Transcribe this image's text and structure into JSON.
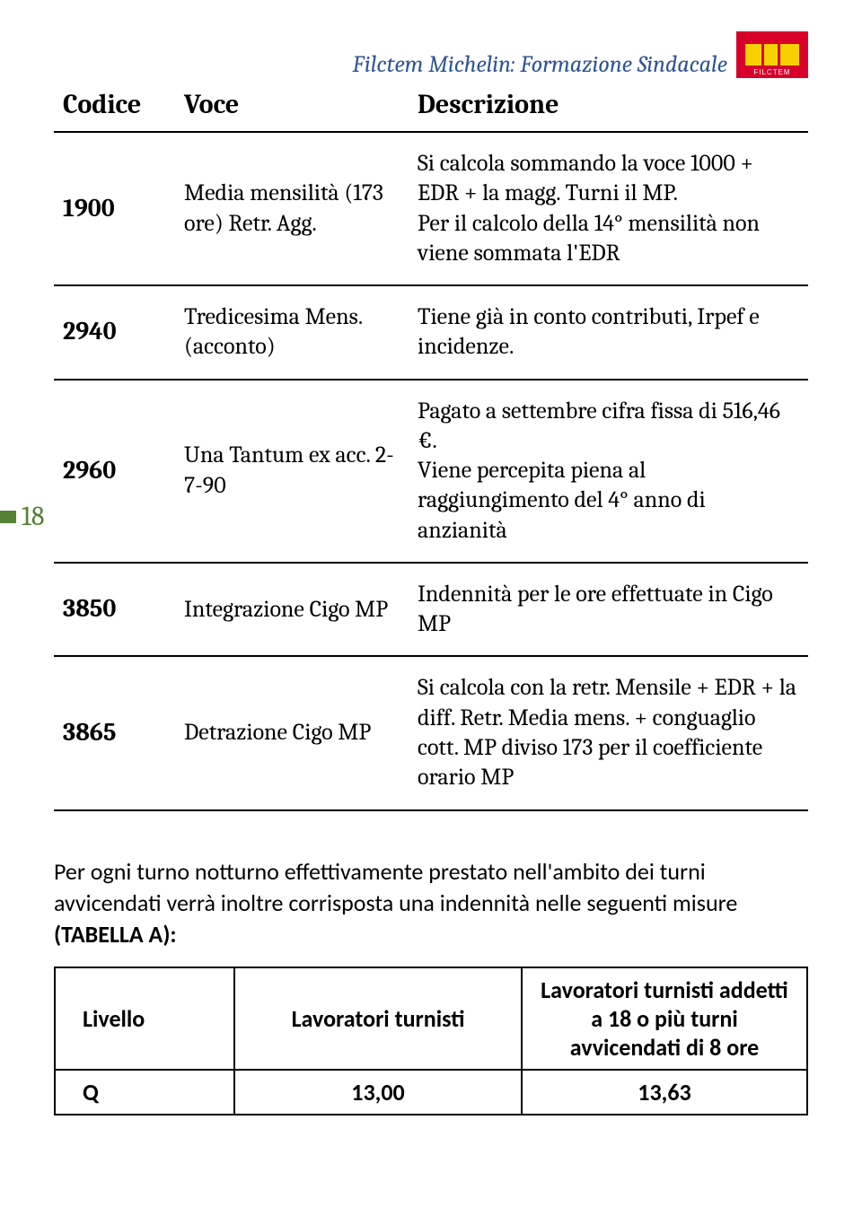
{
  "header": {
    "title": "Filctem Michelin: Formazione Sindacale",
    "logo_label": "FILCTEM"
  },
  "page_number": "18",
  "defs_table": {
    "columns": [
      "Codice",
      "Voce",
      "Descrizione"
    ],
    "rows": [
      {
        "code": "1900",
        "voce": "Media mensilità (173 ore) Retr. Agg.",
        "desc": "Si calcola sommando la voce 1000 + EDR + la magg. Turni il MP.\nPer il calcolo della 14° mensilità non viene sommata l'EDR"
      },
      {
        "code": "2940",
        "voce": "Tredicesima Mens. (acconto)",
        "desc": "Tiene già in conto contributi, Irpef e incidenze."
      },
      {
        "code": "2960",
        "voce": "Una Tantum ex acc. 2-7-90",
        "desc": "Pagato a settembre cifra fissa di 516,46 €.\nViene percepita piena al raggiungimento del 4° anno di anzianità"
      },
      {
        "code": "3850",
        "voce": "Integrazione Cigo MP",
        "desc": "Indennità per le ore effettuate in Cigo MP"
      },
      {
        "code": "3865",
        "voce": "Detrazione Cigo MP",
        "desc": "Si calcola con la retr. Mensile + EDR + la diff. Retr. Media mens. + conguaglio cott. MP diviso 173 per il coefficiente orario MP"
      }
    ]
  },
  "paragraph": {
    "text_prefix": "Per ogni turno notturno effettivamente prestato nell'ambito dei turni avvicendati verrà inoltre corrisposta una indennità nelle seguenti misure ",
    "bold": "(TABELLA A):"
  },
  "levels_table": {
    "columns": [
      "Livello",
      "Lavoratori turnisti",
      "Lavoratori turnisti addetti a 18 o più turni avvicendati di 8 ore"
    ],
    "rows": [
      {
        "livello": "Q",
        "v1": "13,00",
        "v2": "13,63"
      }
    ]
  }
}
